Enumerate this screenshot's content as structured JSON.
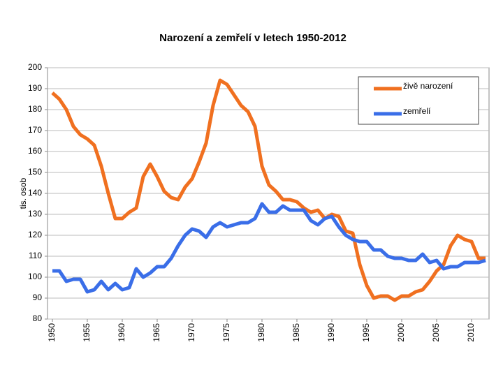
{
  "chart_data": {
    "type": "line",
    "title": "Narození a zemřelí v letech 1950-2012",
    "y_label": "tis. osob",
    "x": [
      1950,
      1951,
      1952,
      1953,
      1954,
      1955,
      1956,
      1957,
      1958,
      1959,
      1960,
      1961,
      1962,
      1963,
      1964,
      1965,
      1966,
      1967,
      1968,
      1969,
      1970,
      1971,
      1972,
      1973,
      1974,
      1975,
      1976,
      1977,
      1978,
      1979,
      1980,
      1981,
      1982,
      1983,
      1984,
      1985,
      1986,
      1987,
      1988,
      1989,
      1990,
      1991,
      1992,
      1993,
      1994,
      1995,
      1996,
      1997,
      1998,
      1999,
      2000,
      2001,
      2002,
      2003,
      2004,
      2005,
      2006,
      2007,
      2008,
      2009,
      2010,
      2011,
      2012
    ],
    "series": [
      {
        "name": "živě narození",
        "color": "#f07020",
        "values": [
          188,
          185,
          180,
          172,
          168,
          166,
          163,
          153,
          140,
          128,
          128,
          131,
          133,
          148,
          154,
          148,
          141,
          138,
          137,
          143,
          147,
          155,
          164,
          182,
          194,
          192,
          187,
          182,
          179,
          172,
          153,
          144,
          141,
          137,
          137,
          136,
          133,
          131,
          132,
          128,
          130,
          129,
          122,
          121,
          106,
          96,
          90,
          91,
          91,
          89,
          91,
          91,
          93,
          94,
          98,
          103,
          106,
          115,
          120,
          118,
          117,
          109,
          109
        ]
      },
      {
        "name": "zemřelí",
        "color": "#3a6ee8",
        "values": [
          103,
          103,
          98,
          99,
          99,
          93,
          94,
          98,
          94,
          97,
          94,
          95,
          104,
          100,
          102,
          105,
          105,
          109,
          115,
          120,
          123,
          122,
          119,
          124,
          126,
          124,
          125,
          126,
          126,
          128,
          135,
          131,
          131,
          134,
          132,
          132,
          132,
          127,
          125,
          128,
          129,
          124,
          120,
          118,
          117,
          117,
          113,
          113,
          110,
          109,
          109,
          108,
          108,
          111,
          107,
          108,
          104,
          105,
          105,
          107,
          107,
          107,
          108
        ]
      }
    ],
    "xlim": [
      1949.3,
      2012.5
    ],
    "xticks": [
      1950,
      1955,
      1960,
      1965,
      1970,
      1975,
      1980,
      1985,
      1990,
      1995,
      2000,
      2005,
      2010
    ],
    "ylim": [
      80,
      200
    ],
    "yticks": [
      80,
      90,
      100,
      110,
      120,
      130,
      140,
      150,
      160,
      170,
      180,
      190,
      200
    ],
    "grid": true,
    "legend": "upper right"
  }
}
